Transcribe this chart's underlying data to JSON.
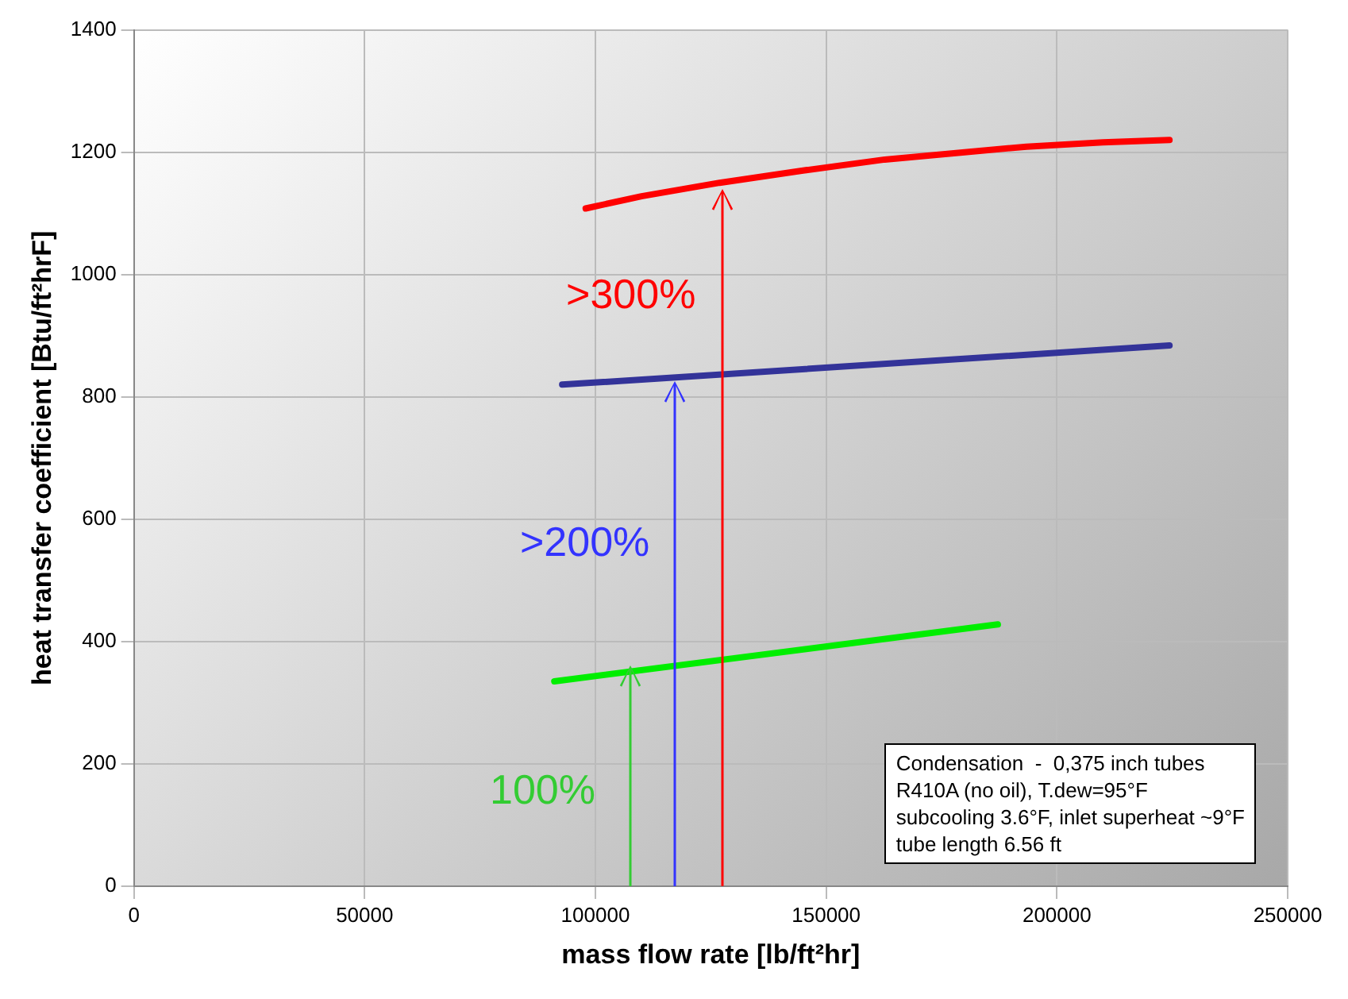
{
  "chart_data": {
    "type": "line",
    "xlabel": "mass flow rate [lb/ft²hr]",
    "ylabel": "heat transfer coefficient [Btu/ft²hrF]",
    "xlim": [
      0,
      250000
    ],
    "xticks": [
      0,
      50000,
      100000,
      150000,
      200000,
      250000
    ],
    "ylim": [
      0,
      1400
    ],
    "yticks": [
      0,
      200,
      400,
      600,
      800,
      1000,
      1200,
      1400
    ],
    "grid": true,
    "marker": "none",
    "line_style": "solid",
    "series": [
      {
        "color": "#ff0000",
        "x": [
          97900,
          110000,
          126900,
          145000,
          162700,
          180000,
          193400,
          210000,
          224400
        ],
        "values": [
          1108,
          1128,
          1150,
          1170,
          1188,
          1200,
          1209,
          1216,
          1220
        ]
      },
      {
        "color": "#333399",
        "x": [
          92800,
          224400
        ],
        "values": [
          820,
          884
        ]
      },
      {
        "color": "#00ee00",
        "x": [
          91100,
          187200
        ],
        "values": [
          335,
          428
        ]
      }
    ],
    "annotations": [
      "100%",
      ">200%",
      ">300%",
      "Condensation  -  0,375 inch tubes\nR410A (no oil), T.dew=95°F\nsubcooling 3.6°F, inlet superheat ~9°F\ntube length 6.56 ft"
    ]
  }
}
